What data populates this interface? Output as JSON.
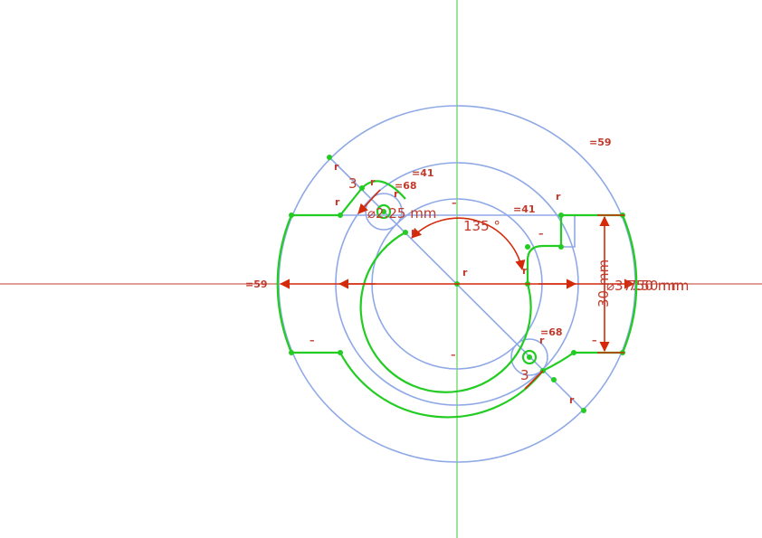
{
  "dimensions": {
    "angle": "135 °",
    "small_diameter": "⌀2.25 mm",
    "outer_diameter": "⌀37.50 mm",
    "outer_diameter_overlap": "7.50 mm",
    "height": "30 mm"
  },
  "constraint_labels": {
    "equal_59_top": "=59",
    "equal_59_left": "=59",
    "equal_41_top": "=41",
    "equal_41_right": "=41",
    "equal_68_top": "=68",
    "equal_68_bottom": "=68"
  },
  "constraint_symbols": {
    "coincident": "r",
    "horizontal": "–",
    "tangent_3": "3"
  },
  "colors": {
    "profile": "#22cc22",
    "construction": "#8fa9e6",
    "dimension": "#d42a0a",
    "x_axis": "#c0392b",
    "y_axis": "#33cc33"
  }
}
